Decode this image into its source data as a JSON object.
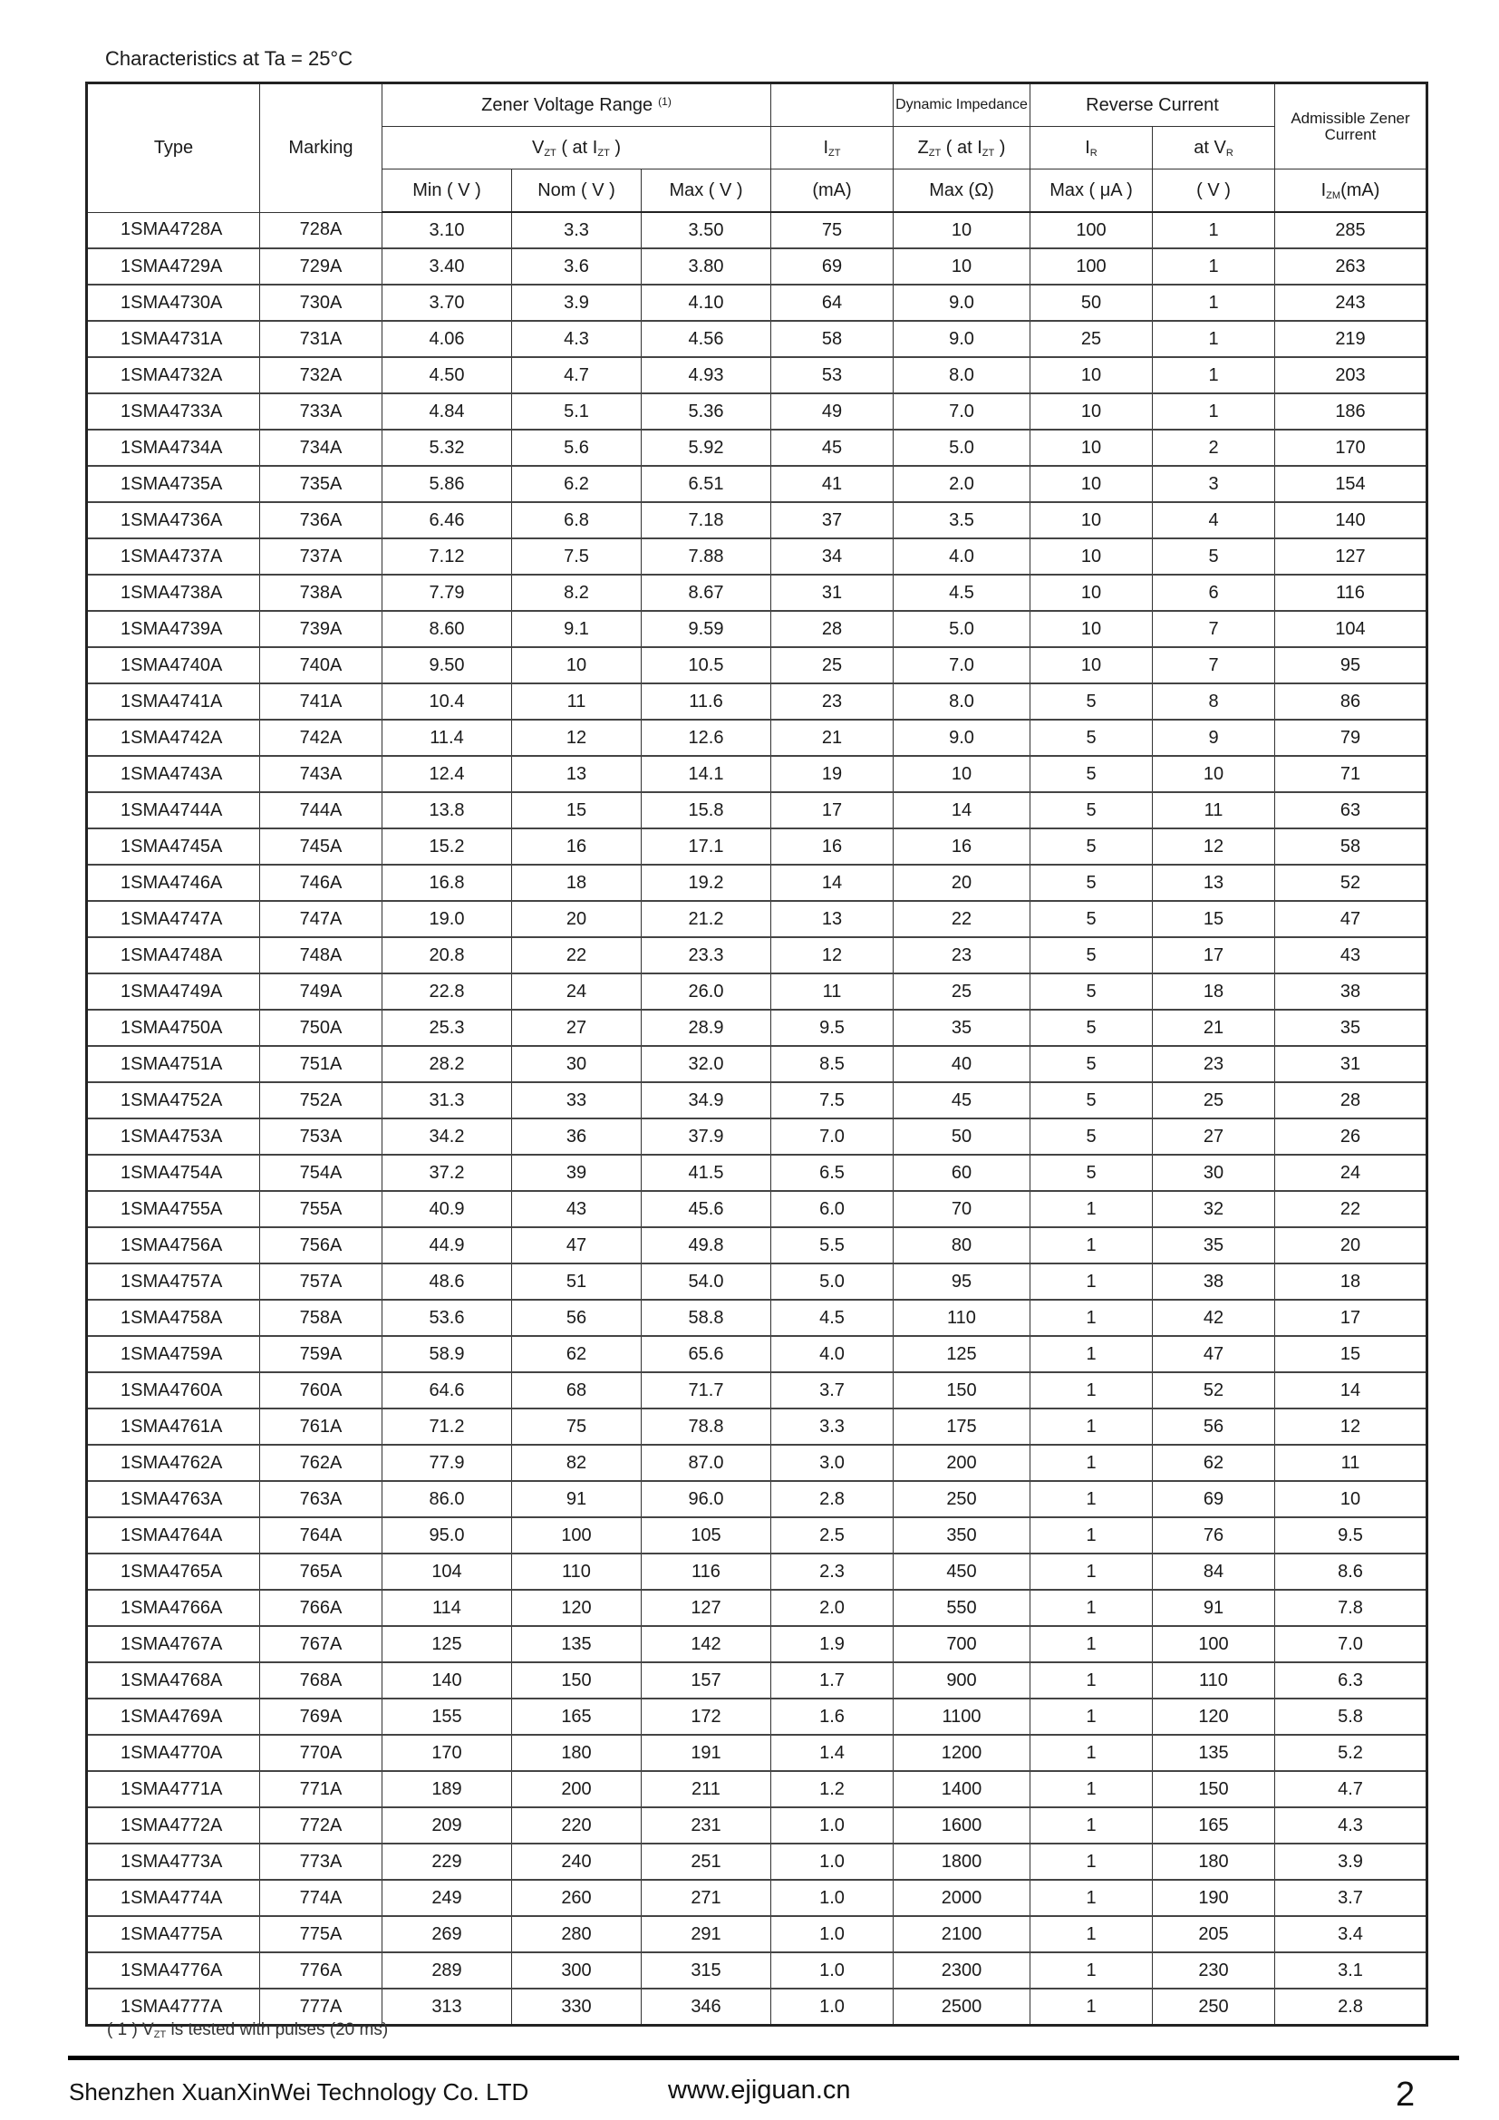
{
  "title": "Characteristics at Ta = 25°C",
  "header": {
    "type": "Type",
    "marking": "Marking",
    "zener_range": "Zener Voltage Range",
    "zener_note": "(1)",
    "dynamic": "Dynamic Impedance",
    "reverse": "Reverse Current",
    "admissible": "Admissible Zener Current",
    "vzt": {
      "a": "V",
      "s1": "ZT",
      "b": " ( at I",
      "s2": "ZT",
      "c": " )"
    },
    "izt": {
      "a": "I",
      "s1": "ZT"
    },
    "zzt": {
      "a": "Z",
      "s1": "ZT",
      "b": " ( at  I",
      "s2": "ZT",
      "c": " )"
    },
    "ir": {
      "a": "I",
      "s1": "R"
    },
    "atvr": {
      "a": "at  V",
      "s1": "R"
    },
    "min": "Min ( V )",
    "nom": "Nom ( V )",
    "max": "Max ( V )",
    "ma": "(mA)",
    "max_ohm": "Max (Ω)",
    "max_ua": "Max ( μA )",
    "v": "( V )",
    "izm": {
      "a": "I",
      "s1": "ZM",
      "b": "(mA)"
    }
  },
  "rows": [
    [
      "1SMA4728A",
      "728A",
      "3.10",
      "3.3",
      "3.50",
      "75",
      "10",
      "100",
      "1",
      "285"
    ],
    [
      "1SMA4729A",
      "729A",
      "3.40",
      "3.6",
      "3.80",
      "69",
      "10",
      "100",
      "1",
      "263"
    ],
    [
      "1SMA4730A",
      "730A",
      "3.70",
      "3.9",
      "4.10",
      "64",
      "9.0",
      "50",
      "1",
      "243"
    ],
    [
      "1SMA4731A",
      "731A",
      "4.06",
      "4.3",
      "4.56",
      "58",
      "9.0",
      "25",
      "1",
      "219"
    ],
    [
      "1SMA4732A",
      "732A",
      "4.50",
      "4.7",
      "4.93",
      "53",
      "8.0",
      "10",
      "1",
      "203"
    ],
    [
      "1SMA4733A",
      "733A",
      "4.84",
      "5.1",
      "5.36",
      "49",
      "7.0",
      "10",
      "1",
      "186"
    ],
    [
      "1SMA4734A",
      "734A",
      "5.32",
      "5.6",
      "5.92",
      "45",
      "5.0",
      "10",
      "2",
      "170"
    ],
    [
      "1SMA4735A",
      "735A",
      "5.86",
      "6.2",
      "6.51",
      "41",
      "2.0",
      "10",
      "3",
      "154"
    ],
    [
      "1SMA4736A",
      "736A",
      "6.46",
      "6.8",
      "7.18",
      "37",
      "3.5",
      "10",
      "4",
      "140"
    ],
    [
      "1SMA4737A",
      "737A",
      "7.12",
      "7.5",
      "7.88",
      "34",
      "4.0",
      "10",
      "5",
      "127"
    ],
    [
      "1SMA4738A",
      "738A",
      "7.79",
      "8.2",
      "8.67",
      "31",
      "4.5",
      "10",
      "6",
      "116"
    ],
    [
      "1SMA4739A",
      "739A",
      "8.60",
      "9.1",
      "9.59",
      "28",
      "5.0",
      "10",
      "7",
      "104"
    ],
    [
      "1SMA4740A",
      "740A",
      "9.50",
      "10",
      "10.5",
      "25",
      "7.0",
      "10",
      "7",
      "95"
    ],
    [
      "1SMA4741A",
      "741A",
      "10.4",
      "11",
      "11.6",
      "23",
      "8.0",
      "5",
      "8",
      "86"
    ],
    [
      "1SMA4742A",
      "742A",
      "11.4",
      "12",
      "12.6",
      "21",
      "9.0",
      "5",
      "9",
      "79"
    ],
    [
      "1SMA4743A",
      "743A",
      "12.4",
      "13",
      "14.1",
      "19",
      "10",
      "5",
      "10",
      "71"
    ],
    [
      "1SMA4744A",
      "744A",
      "13.8",
      "15",
      "15.8",
      "17",
      "14",
      "5",
      "11",
      "63"
    ],
    [
      "1SMA4745A",
      "745A",
      "15.2",
      "16",
      "17.1",
      "16",
      "16",
      "5",
      "12",
      "58"
    ],
    [
      "1SMA4746A",
      "746A",
      "16.8",
      "18",
      "19.2",
      "14",
      "20",
      "5",
      "13",
      "52"
    ],
    [
      "1SMA4747A",
      "747A",
      "19.0",
      "20",
      "21.2",
      "13",
      "22",
      "5",
      "15",
      "47"
    ],
    [
      "1SMA4748A",
      "748A",
      "20.8",
      "22",
      "23.3",
      "12",
      "23",
      "5",
      "17",
      "43"
    ],
    [
      "1SMA4749A",
      "749A",
      "22.8",
      "24",
      "26.0",
      "11",
      "25",
      "5",
      "18",
      "38"
    ],
    [
      "1SMA4750A",
      "750A",
      "25.3",
      "27",
      "28.9",
      "9.5",
      "35",
      "5",
      "21",
      "35"
    ],
    [
      "1SMA4751A",
      "751A",
      "28.2",
      "30",
      "32.0",
      "8.5",
      "40",
      "5",
      "23",
      "31"
    ],
    [
      "1SMA4752A",
      "752A",
      "31.3",
      "33",
      "34.9",
      "7.5",
      "45",
      "5",
      "25",
      "28"
    ],
    [
      "1SMA4753A",
      "753A",
      "34.2",
      "36",
      "37.9",
      "7.0",
      "50",
      "5",
      "27",
      "26"
    ],
    [
      "1SMA4754A",
      "754A",
      "37.2",
      "39",
      "41.5",
      "6.5",
      "60",
      "5",
      "30",
      "24"
    ],
    [
      "1SMA4755A",
      "755A",
      "40.9",
      "43",
      "45.6",
      "6.0",
      "70",
      "1",
      "32",
      "22"
    ],
    [
      "1SMA4756A",
      "756A",
      "44.9",
      "47",
      "49.8",
      "5.5",
      "80",
      "1",
      "35",
      "20"
    ],
    [
      "1SMA4757A",
      "757A",
      "48.6",
      "51",
      "54.0",
      "5.0",
      "95",
      "1",
      "38",
      "18"
    ],
    [
      "1SMA4758A",
      "758A",
      "53.6",
      "56",
      "58.8",
      "4.5",
      "110",
      "1",
      "42",
      "17"
    ],
    [
      "1SMA4759A",
      "759A",
      "58.9",
      "62",
      "65.6",
      "4.0",
      "125",
      "1",
      "47",
      "15"
    ],
    [
      "1SMA4760A",
      "760A",
      "64.6",
      "68",
      "71.7",
      "3.7",
      "150",
      "1",
      "52",
      "14"
    ],
    [
      "1SMA4761A",
      "761A",
      "71.2",
      "75",
      "78.8",
      "3.3",
      "175",
      "1",
      "56",
      "12"
    ],
    [
      "1SMA4762A",
      "762A",
      "77.9",
      "82",
      "87.0",
      "3.0",
      "200",
      "1",
      "62",
      "11"
    ],
    [
      "1SMA4763A",
      "763A",
      "86.0",
      "91",
      "96.0",
      "2.8",
      "250",
      "1",
      "69",
      "10"
    ],
    [
      "1SMA4764A",
      "764A",
      "95.0",
      "100",
      "105",
      "2.5",
      "350",
      "1",
      "76",
      "9.5"
    ],
    [
      "1SMA4765A",
      "765A",
      "104",
      "110",
      "116",
      "2.3",
      "450",
      "1",
      "84",
      "8.6"
    ],
    [
      "1SMA4766A",
      "766A",
      "114",
      "120",
      "127",
      "2.0",
      "550",
      "1",
      "91",
      "7.8"
    ],
    [
      "1SMA4767A",
      "767A",
      "125",
      "135",
      "142",
      "1.9",
      "700",
      "1",
      "100",
      "7.0"
    ],
    [
      "1SMA4768A",
      "768A",
      "140",
      "150",
      "157",
      "1.7",
      "900",
      "1",
      "110",
      "6.3"
    ],
    [
      "1SMA4769A",
      "769A",
      "155",
      "165",
      "172",
      "1.6",
      "1100",
      "1",
      "120",
      "5.8"
    ],
    [
      "1SMA4770A",
      "770A",
      "170",
      "180",
      "191",
      "1.4",
      "1200",
      "1",
      "135",
      "5.2"
    ],
    [
      "1SMA4771A",
      "771A",
      "189",
      "200",
      "211",
      "1.2",
      "1400",
      "1",
      "150",
      "4.7"
    ],
    [
      "1SMA4772A",
      "772A",
      "209",
      "220",
      "231",
      "1.0",
      "1600",
      "1",
      "165",
      "4.3"
    ],
    [
      "1SMA4773A",
      "773A",
      "229",
      "240",
      "251",
      "1.0",
      "1800",
      "1",
      "180",
      "3.9"
    ],
    [
      "1SMA4774A",
      "774A",
      "249",
      "260",
      "271",
      "1.0",
      "2000",
      "1",
      "190",
      "3.7"
    ],
    [
      "1SMA4775A",
      "775A",
      "269",
      "280",
      "291",
      "1.0",
      "2100",
      "1",
      "205",
      "3.4"
    ],
    [
      "1SMA4776A",
      "776A",
      "289",
      "300",
      "315",
      "1.0",
      "2300",
      "1",
      "230",
      "3.1"
    ],
    [
      "1SMA4777A",
      "777A",
      "313",
      "330",
      "346",
      "1.0",
      "2500",
      "1",
      "250",
      "2.8"
    ]
  ],
  "footnote": {
    "a": "( 1 )  V",
    "s1": "ZT",
    "b": " is tested with pulses (20 ms)"
  },
  "footer": {
    "company": "Shenzhen XuanXinWei Technology Co. LTD",
    "url": "www.ejiguan.cn",
    "page": "2"
  }
}
